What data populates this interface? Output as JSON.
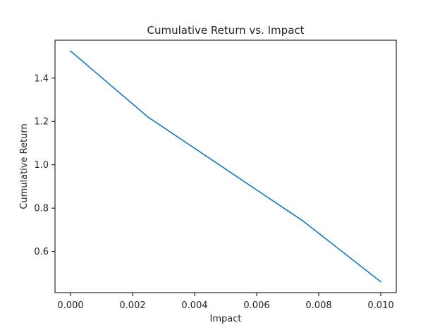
{
  "chart_data": {
    "type": "line",
    "title": "Cumulative Return vs. Impact",
    "xlabel": "Impact",
    "ylabel": "Cumulative Return",
    "xlim": [
      -0.0005,
      0.0105
    ],
    "ylim": [
      0.41,
      1.575
    ],
    "x_ticks": [
      "0.000",
      "0.002",
      "0.004",
      "0.006",
      "0.008",
      "0.010"
    ],
    "y_ticks": [
      "0.6",
      "0.8",
      "1.0",
      "1.2",
      "1.4"
    ],
    "grid": false,
    "series": [
      {
        "color": "#1f77b4",
        "x": [
          0.0,
          0.0025,
          0.005,
          0.0075,
          0.01
        ],
        "y": [
          1.525,
          1.22,
          0.98,
          0.74,
          0.46
        ]
      }
    ]
  }
}
